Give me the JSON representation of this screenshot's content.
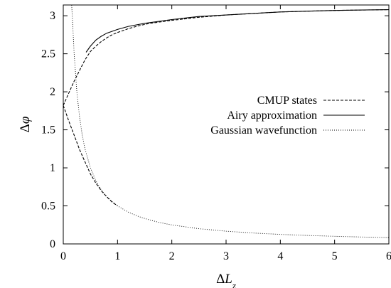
{
  "chart_data": {
    "type": "line",
    "title": "",
    "xlabel_prefix": "Δ",
    "xlabel_var": "L",
    "xlabel_sub": "z",
    "ylabel_prefix": "Δ",
    "ylabel_var": "φ",
    "xlim": [
      0,
      6
    ],
    "ylim": [
      0,
      3.14159
    ],
    "xticks": [
      0,
      1,
      2,
      3,
      4,
      5,
      6
    ],
    "xtick_labels": [
      "0",
      "1",
      "2",
      "3",
      "4",
      "5",
      "6"
    ],
    "yticks": [
      0,
      0.5,
      1,
      1.5,
      2,
      2.5,
      3
    ],
    "ytick_labels": [
      "0",
      "0.5",
      "1",
      "1.5",
      "2",
      "2.5",
      "3"
    ],
    "grid": false,
    "legend_position": "right",
    "series": [
      {
        "name": "CMUP states",
        "dash": "dashed",
        "segments": [
          {
            "x": [
              0.0,
              0.1,
              0.2,
              0.3,
              0.4,
              0.5,
              0.6,
              0.7,
              0.8,
              0.9,
              1.0,
              1.2,
              1.4,
              1.6,
              1.8,
              2.0,
              2.5,
              3.0,
              3.5,
              4.0,
              4.5,
              5.0,
              5.5,
              6.0
            ],
            "y": [
              1.82,
              1.98,
              2.14,
              2.28,
              2.42,
              2.53,
              2.6,
              2.66,
              2.71,
              2.75,
              2.78,
              2.83,
              2.87,
              2.9,
              2.92,
              2.94,
              2.98,
              3.01,
              3.03,
              3.05,
              3.06,
              3.07,
              3.075,
              3.08
            ]
          },
          {
            "x": [
              0.0,
              0.1,
              0.2,
              0.3,
              0.4,
              0.5,
              0.6,
              0.7,
              0.8,
              0.9,
              1.0
            ],
            "y": [
              1.82,
              1.62,
              1.43,
              1.24,
              1.08,
              0.92,
              0.8,
              0.7,
              0.62,
              0.55,
              0.5
            ]
          }
        ]
      },
      {
        "name": "Airy approximation",
        "dash": "solid",
        "segments": [
          {
            "x": [
              0.42,
              0.5,
              0.6,
              0.7,
              0.8,
              1.0,
              1.2,
              1.5,
              2.0,
              2.5,
              3.0,
              3.5,
              4.0,
              4.5,
              5.0,
              5.5,
              6.0
            ],
            "y": [
              2.52,
              2.6,
              2.68,
              2.73,
              2.77,
              2.82,
              2.86,
              2.9,
              2.95,
              2.99,
              3.01,
              3.03,
              3.05,
              3.06,
              3.07,
              3.075,
              3.08
            ]
          }
        ]
      },
      {
        "name": "Gaussian wavefunction",
        "dash": "dotted",
        "segments": [
          {
            "x": [
              0.155,
              0.17,
              0.2,
              0.25,
              0.3,
              0.35,
              0.4,
              0.5,
              0.6,
              0.7,
              0.8,
              0.9,
              1.0,
              1.2,
              1.4,
              1.6,
              1.8,
              2.0,
              2.5,
              3.0,
              3.5,
              4.0,
              4.5,
              5.0,
              5.5,
              6.0
            ],
            "y": [
              3.14,
              2.94,
              2.5,
              2.0,
              1.67,
              1.43,
              1.25,
              1.0,
              0.83,
              0.71,
              0.625,
              0.556,
              0.5,
              0.417,
              0.357,
              0.313,
              0.278,
              0.25,
              0.2,
              0.167,
              0.143,
              0.125,
              0.111,
              0.1,
              0.091,
              0.083
            ]
          }
        ]
      }
    ]
  }
}
